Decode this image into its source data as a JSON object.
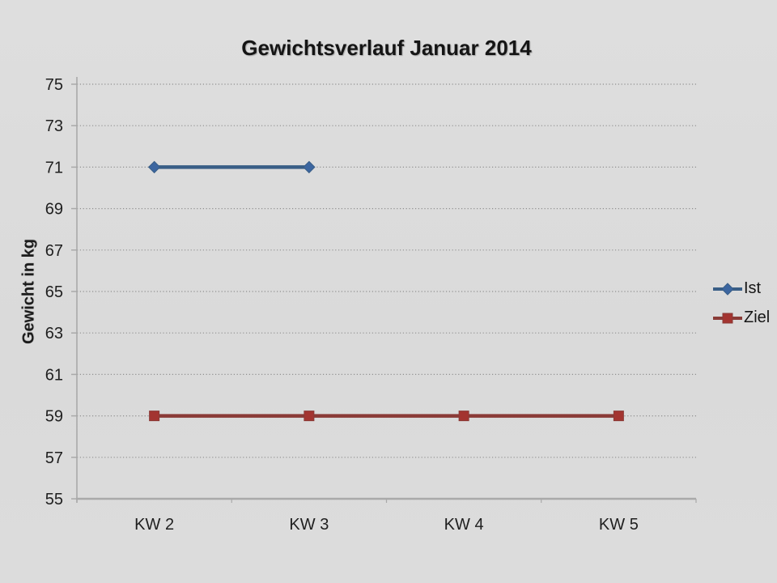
{
  "chart": {
    "title": "Gewichtsverlauf Januar 2014",
    "ylabel": "Gewicht in kg"
  },
  "theme": {
    "background": "#dbdbdb",
    "text": "#1f1f1f",
    "gridline": "#8f8f8f",
    "axis": "#a9a9a9"
  },
  "chart_data": {
    "type": "line",
    "title": "Gewichtsverlauf Januar 2014",
    "xlabel": "",
    "ylabel": "Gewicht in kg",
    "categories": [
      "KW 2",
      "KW 3",
      "KW 4",
      "KW 5"
    ],
    "series": [
      {
        "name": "Ist",
        "values": [
          71,
          71,
          null,
          null
        ],
        "color": "#395e86",
        "marker_color": "#3c66a0",
        "marker": "diamond"
      },
      {
        "name": "Ziel",
        "values": [
          59,
          59,
          59,
          59
        ],
        "color": "#8a3b37",
        "marker_color": "#a33430",
        "marker": "square"
      }
    ],
    "ylim": [
      55,
      75
    ],
    "yticks": [
      55,
      57,
      59,
      61,
      63,
      65,
      67,
      69,
      71,
      73,
      75
    ],
    "grid": "horizontal-dotted",
    "legend_position": "right"
  }
}
